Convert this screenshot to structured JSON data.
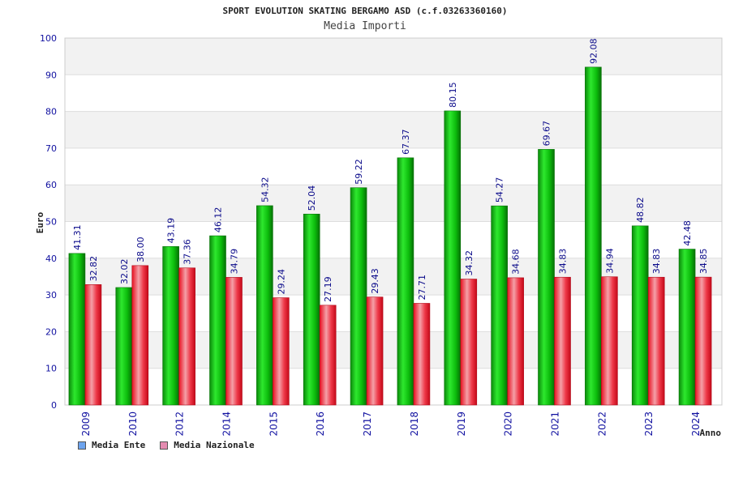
{
  "header": {
    "title": "SPORT EVOLUTION SKATING BERGAMO ASD (c.f.03263360160)",
    "subtitle": "Media Importi"
  },
  "legend": {
    "items": [
      {
        "label": "Media Ente",
        "color": "#6ea4ee"
      },
      {
        "label": "Media Nazionale",
        "color": "#e48bb0"
      }
    ]
  },
  "colors": {
    "ente_bar": "#08b808",
    "nazionale_bar": "#e01a2a",
    "label_text": "#0a0a8a",
    "axis_tick_text": "#1010a0"
  },
  "chart_data": {
    "type": "bar",
    "title": "Media Importi",
    "xlabel": "Anno",
    "ylabel": "Euro",
    "ylim": [
      0,
      100
    ],
    "yticks": [
      0,
      10,
      20,
      30,
      40,
      50,
      60,
      70,
      80,
      90,
      100
    ],
    "grid": true,
    "legend_position": "bottom-left",
    "categories": [
      "2009",
      "2010",
      "2012",
      "2014",
      "2015",
      "2016",
      "2017",
      "2018",
      "2019",
      "2020",
      "2021",
      "2022",
      "2023",
      "2024"
    ],
    "series": [
      {
        "name": "Media Ente",
        "values": [
          41.31,
          32.02,
          43.19,
          46.12,
          54.32,
          52.04,
          59.22,
          67.37,
          80.15,
          54.27,
          69.67,
          92.08,
          48.82,
          42.48
        ],
        "labels": [
          "41.31",
          "32.02",
          "43.19",
          "46.12",
          "54.32",
          "52.04",
          "59.22",
          "67.37",
          "80.15",
          "54.27",
          "69.67",
          "92.08",
          "48.82",
          "42.48"
        ]
      },
      {
        "name": "Media Nazionale",
        "values": [
          32.82,
          38.0,
          37.36,
          34.79,
          29.24,
          27.19,
          29.43,
          27.71,
          34.32,
          34.68,
          34.83,
          34.94,
          34.83,
          34.85
        ],
        "labels": [
          "32.82",
          "38.00",
          "37.36",
          "34.79",
          "29.24",
          "27.19",
          "29.43",
          "27.71",
          "34.32",
          "34.68",
          "34.83",
          "34.94",
          "34.83",
          "34.85"
        ]
      }
    ]
  }
}
